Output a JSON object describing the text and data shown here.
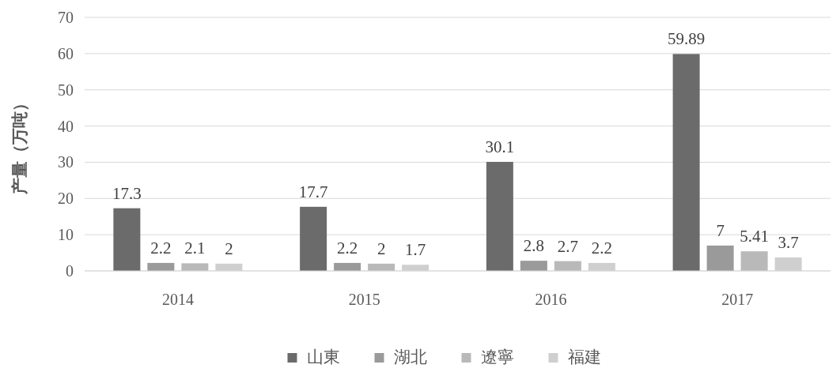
{
  "chart_data": {
    "type": "bar",
    "ylabel": "产量（万吨）",
    "categories": [
      "2014",
      "2015",
      "2016",
      "2017"
    ],
    "series": [
      {
        "name": "山東",
        "color": "#6b6b6b",
        "values": [
          17.3,
          17.7,
          30.1,
          59.89
        ]
      },
      {
        "name": "湖北",
        "color": "#9a9a9a",
        "values": [
          2.2,
          2.2,
          2.8,
          7
        ]
      },
      {
        "name": "遼寧",
        "color": "#b9b9b9",
        "values": [
          2.1,
          2,
          2.7,
          5.41
        ]
      },
      {
        "name": "福建",
        "color": "#cfcfcf",
        "values": [
          2,
          1.7,
          2.2,
          3.7
        ]
      }
    ],
    "ylim": [
      0,
      70
    ],
    "yticks": [
      0,
      10,
      20,
      30,
      40,
      50,
      60,
      70
    ],
    "grid": "y",
    "legend": "bottom",
    "data_labels": true
  }
}
